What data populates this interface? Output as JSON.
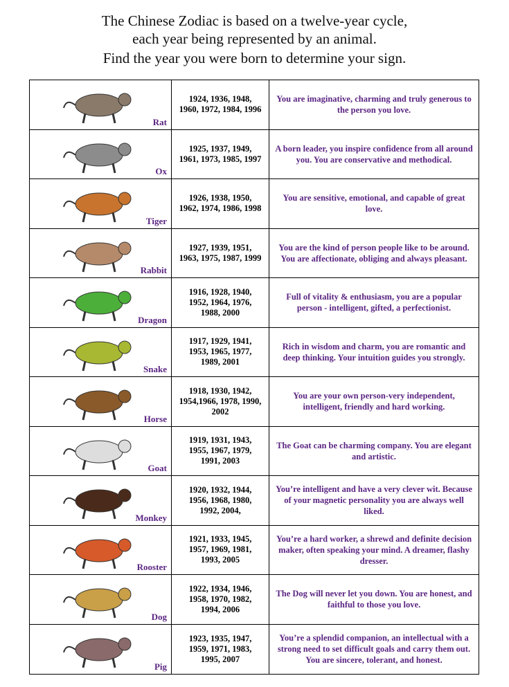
{
  "header": {
    "lines": [
      "The Chinese Zodiac is based on a twelve-year cycle,",
      "each year being represented by an animal.",
      "Find the year you were born to determine your sign."
    ]
  },
  "table": {
    "rows": [
      [
        "Rat",
        "1924, 1936, 1948, 1960, 1972, 1984, 1996",
        "You are imaginative, charming and truly generous to the person you love."
      ],
      [
        "Ox",
        "1925, 1937, 1949, 1961, 1973, 1985, 1997",
        "A born leader, you inspire confidence from all around you. You are conservative and methodical."
      ],
      [
        "Tiger",
        "1926, 1938, 1950, 1962, 1974, 1986, 1998",
        "You are sensitive, emotional, and capable of great love."
      ],
      [
        "Rabbit",
        "1927, 1939, 1951, 1963, 1975, 1987, 1999",
        "You are the kind of person people like to be around. You are affectionate, obliging and always pleasant."
      ],
      [
        "Dragon",
        "1916, 1928, 1940, 1952, 1964, 1976, 1988, 2000",
        "Full of vitality & enthusiasm, you are a popular person - intelligent, gifted, a perfectionist."
      ],
      [
        "Snake",
        "1917, 1929, 1941, 1953, 1965, 1977, 1989, 2001",
        "Rich in wisdom and charm, you are romantic and deep thinking. Your intuition guides you strongly."
      ],
      [
        "Horse",
        "1918, 1930, 1942, 1954,1966, 1978, 1990, 2002",
        "You are your own person-very independent, intelligent, friendly and hard working."
      ],
      [
        "Goat",
        "1919, 1931, 1943, 1955, 1967, 1979, 1991, 2003",
        "The Goat can be charming company. You are elegant and artistic."
      ],
      [
        "Monkey",
        "1920, 1932, 1944, 1956, 1968, 1980, 1992, 2004,",
        "You’re intelligent and have a very clever wit. Because of your magnetic personality you are always well liked."
      ],
      [
        "Rooster",
        "1921, 1933, 1945, 1957, 1969, 1981, 1993, 2005",
        "You’re a hard worker, a shrewd and definite decision maker, often speaking your mind. A dreamer, flashy dresser."
      ],
      [
        "Dog",
        "1922, 1934, 1946, 1958, 1970, 1982, 1994, 2006",
        "The Dog will never let you down. You are honest, and faithful to those you love."
      ],
      [
        "Pig",
        "1923, 1935, 1947, 1959, 1971, 1983, 1995, 2007",
        "You’re a splendid companion, an intellectual with a strong need to set difficult goals and carry them out. You are sincere, tolerant, and honest."
      ]
    ]
  }
}
